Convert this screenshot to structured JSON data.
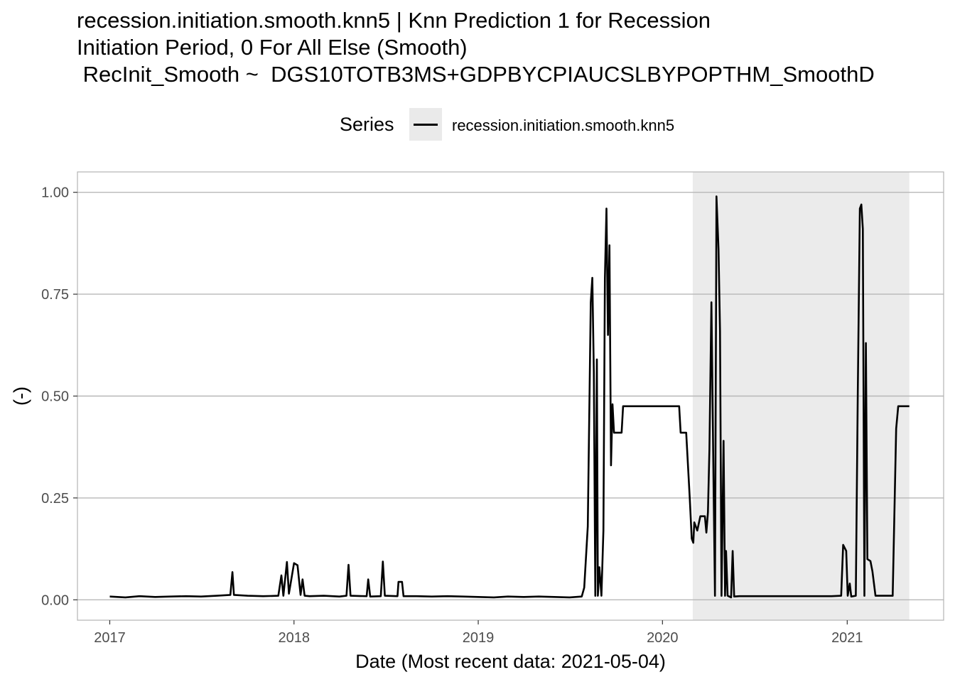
{
  "chart_data": {
    "type": "line",
    "title_lines": [
      "recession.initiation.smooth.knn5 | Knn Prediction 1 for Recession",
      "Initiation Period, 0 For All Else (Smooth)",
      " RecInit_Smooth ~  DGS10TOTB3MS+GDPBYCPIAUCSLBYPOPTHM_SmoothD"
    ],
    "xlabel": "Date (Most recent data: 2021-05-04)",
    "ylabel": "(-)",
    "legend_title": "Series",
    "legend_placement": "top",
    "grid": true,
    "xlim": [
      "2016-10-29",
      "2021-07-11"
    ],
    "ylim": [
      -0.05,
      1.05
    ],
    "x_ticks": [
      {
        "label": "2017",
        "date": "2017-01-01"
      },
      {
        "label": "2018",
        "date": "2018-01-01"
      },
      {
        "label": "2019",
        "date": "2019-01-01"
      },
      {
        "label": "2020",
        "date": "2020-01-01"
      },
      {
        "label": "2021",
        "date": "2021-01-01"
      }
    ],
    "y_ticks": [
      0,
      0.25,
      0.5,
      0.75,
      1.0
    ],
    "y_tick_labels": [
      "0.00",
      "0.25",
      "0.50",
      "0.75",
      "1.00"
    ],
    "shaded_region": {
      "start": "2020-03-01",
      "end": "2021-05-04",
      "color": "#ebebeb"
    },
    "series": [
      {
        "name": "recession.initiation.smooth.knn5",
        "color": "#000000",
        "points": [
          [
            "2017-01-01",
            0.008
          ],
          [
            "2017-02-01",
            0.006
          ],
          [
            "2017-03-01",
            0.009
          ],
          [
            "2017-04-01",
            0.007
          ],
          [
            "2017-05-01",
            0.008
          ],
          [
            "2017-06-01",
            0.009
          ],
          [
            "2017-07-01",
            0.008
          ],
          [
            "2017-08-01",
            0.01
          ],
          [
            "2017-08-28",
            0.012
          ],
          [
            "2017-09-01",
            0.068
          ],
          [
            "2017-09-04",
            0.012
          ],
          [
            "2017-10-01",
            0.01
          ],
          [
            "2017-11-01",
            0.009
          ],
          [
            "2017-12-01",
            0.01
          ],
          [
            "2017-12-07",
            0.06
          ],
          [
            "2017-12-11",
            0.01
          ],
          [
            "2017-12-18",
            0.093
          ],
          [
            "2017-12-22",
            0.015
          ],
          [
            "2018-01-01",
            0.09
          ],
          [
            "2018-01-08",
            0.085
          ],
          [
            "2018-01-14",
            0.012
          ],
          [
            "2018-01-18",
            0.05
          ],
          [
            "2018-01-22",
            0.01
          ],
          [
            "2018-02-01",
            0.009
          ],
          [
            "2018-03-01",
            0.01
          ],
          [
            "2018-04-01",
            0.008
          ],
          [
            "2018-04-15",
            0.01
          ],
          [
            "2018-04-19",
            0.086
          ],
          [
            "2018-04-23",
            0.01
          ],
          [
            "2018-05-25",
            0.009
          ],
          [
            "2018-05-28",
            0.05
          ],
          [
            "2018-06-01",
            0.008
          ],
          [
            "2018-06-22",
            0.009
          ],
          [
            "2018-06-26",
            0.094
          ],
          [
            "2018-06-30",
            0.01
          ],
          [
            "2018-07-25",
            0.009
          ],
          [
            "2018-07-27",
            0.044
          ],
          [
            "2018-08-03",
            0.044
          ],
          [
            "2018-08-06",
            0.009
          ],
          [
            "2018-09-01",
            0.009
          ],
          [
            "2018-10-01",
            0.008
          ],
          [
            "2018-11-01",
            0.009
          ],
          [
            "2018-12-01",
            0.008
          ],
          [
            "2019-01-01",
            0.007
          ],
          [
            "2019-02-01",
            0.006
          ],
          [
            "2019-03-01",
            0.008
          ],
          [
            "2019-04-01",
            0.007
          ],
          [
            "2019-05-01",
            0.008
          ],
          [
            "2019-06-01",
            0.007
          ],
          [
            "2019-07-01",
            0.006
          ],
          [
            "2019-07-25",
            0.008
          ],
          [
            "2019-07-30",
            0.03
          ],
          [
            "2019-08-06",
            0.18
          ],
          [
            "2019-08-12",
            0.73
          ],
          [
            "2019-08-15",
            0.79
          ],
          [
            "2019-08-18",
            0.56
          ],
          [
            "2019-08-21",
            0.01
          ],
          [
            "2019-08-24",
            0.59
          ],
          [
            "2019-08-26",
            0.01
          ],
          [
            "2019-08-29",
            0.08
          ],
          [
            "2019-09-02",
            0.01
          ],
          [
            "2019-09-06",
            0.17
          ],
          [
            "2019-09-09",
            0.79
          ],
          [
            "2019-09-12",
            0.96
          ],
          [
            "2019-09-15",
            0.65
          ],
          [
            "2019-09-18",
            0.87
          ],
          [
            "2019-09-21",
            0.33
          ],
          [
            "2019-09-24",
            0.48
          ],
          [
            "2019-09-27",
            0.41
          ],
          [
            "2019-10-12",
            0.41
          ],
          [
            "2019-10-15",
            0.475
          ],
          [
            "2020-02-03",
            0.475
          ],
          [
            "2020-02-06",
            0.41
          ],
          [
            "2020-02-17",
            0.41
          ],
          [
            "2020-02-24",
            0.25
          ],
          [
            "2020-02-28",
            0.15
          ],
          [
            "2020-03-02",
            0.14
          ],
          [
            "2020-03-04",
            0.19
          ],
          [
            "2020-03-10",
            0.17
          ],
          [
            "2020-03-16",
            0.205
          ],
          [
            "2020-03-25",
            0.205
          ],
          [
            "2020-03-28",
            0.165
          ],
          [
            "2020-03-31",
            0.215
          ],
          [
            "2020-04-03",
            0.37
          ],
          [
            "2020-04-07",
            0.73
          ],
          [
            "2020-04-11",
            0.3
          ],
          [
            "2020-04-14",
            0.01
          ],
          [
            "2020-04-17",
            0.99
          ],
          [
            "2020-04-21",
            0.86
          ],
          [
            "2020-04-24",
            0.66
          ],
          [
            "2020-04-27",
            0.01
          ],
          [
            "2020-05-01",
            0.39
          ],
          [
            "2020-05-04",
            0.01
          ],
          [
            "2020-05-06",
            0.12
          ],
          [
            "2020-05-09",
            0.01
          ],
          [
            "2020-05-16",
            0.006
          ],
          [
            "2020-05-19",
            0.12
          ],
          [
            "2020-05-22",
            0.008
          ],
          [
            "2020-06-01",
            0.009
          ],
          [
            "2020-09-01",
            0.009
          ],
          [
            "2020-12-01",
            0.009
          ],
          [
            "2020-12-20",
            0.01
          ],
          [
            "2020-12-24",
            0.135
          ],
          [
            "2020-12-30",
            0.12
          ],
          [
            "2021-01-02",
            0.01
          ],
          [
            "2021-01-06",
            0.04
          ],
          [
            "2021-01-09",
            0.008
          ],
          [
            "2021-01-18",
            0.01
          ],
          [
            "2021-01-22",
            0.51
          ],
          [
            "2021-01-26",
            0.96
          ],
          [
            "2021-01-29",
            0.97
          ],
          [
            "2021-02-01",
            0.91
          ],
          [
            "2021-02-04",
            0.01
          ],
          [
            "2021-02-07",
            0.63
          ],
          [
            "2021-02-10",
            0.1
          ],
          [
            "2021-02-16",
            0.095
          ],
          [
            "2021-02-20",
            0.07
          ],
          [
            "2021-02-26",
            0.01
          ],
          [
            "2021-04-01",
            0.01
          ],
          [
            "2021-04-08",
            0.42
          ],
          [
            "2021-04-12",
            0.475
          ],
          [
            "2021-05-04",
            0.475
          ]
        ]
      }
    ]
  }
}
